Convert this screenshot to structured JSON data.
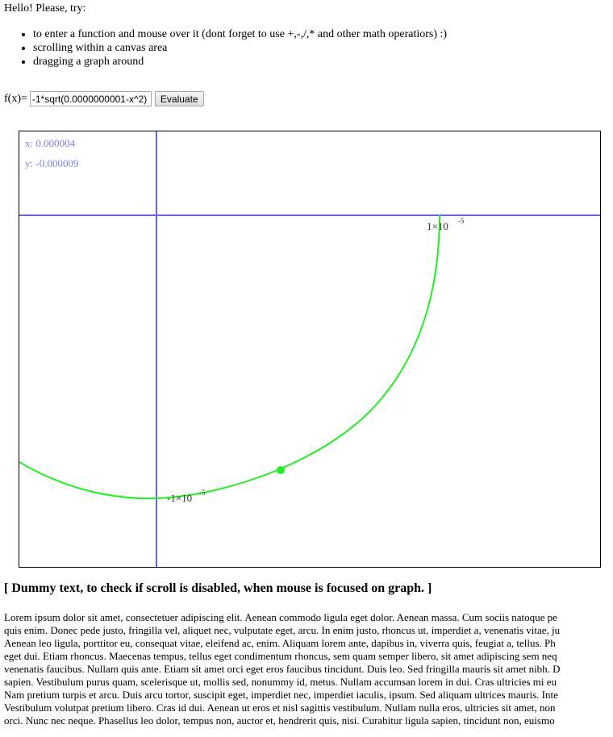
{
  "intro": "Hello! Please, try:",
  "tips": [
    "to enter a function and mouse over it (dont forget to use +,-,/,* and other math operatiors) :)",
    "scrolling within a canvas area",
    "dragging a graph around"
  ],
  "fx": {
    "label": "f(x)=",
    "value": "-1*sqrt(0.0000000001-x^2)",
    "button": "Evaluate"
  },
  "graph": {
    "coord_x": "x: 0.000004",
    "coord_y": "y: -0.000009",
    "tick_x_base": "1×10",
    "tick_x_exp": "-5",
    "tick_y_base": "-1×10",
    "tick_y_exp": "-5",
    "axis_color": "#6666dd",
    "curve_color": "#22ee22"
  },
  "dummy": {
    "heading": "[ Dummy text, to check if scroll is disabled, when mouse is focused on graph. ]",
    "lines": [
      "Lorem ipsum dolor sit amet, consectetuer adipiscing elit. Aenean commodo ligula eget dolor. Aenean massa. Cum sociis natoque pe",
      "quis enim. Donec pede justo, fringilla vel, aliquet nec, vulputate eget, arcu. In enim justo, rhoncus ut, imperdiet a, venenatis vitae, ju",
      "Aenean leo ligula, porttitor eu, consequat vitae, eleifend ac, enim. Aliquam lorem ante, dapibus in, viverra quis, feugiat a, tellus. Ph",
      "eget dui. Etiam rhoncus. Maecenas tempus, tellus eget condimentum rhoncus, sem quam semper libero, sit amet adipiscing sem neq",
      "venenatis faucibus. Nullam quis ante. Etiam sit amet orci eget eros faucibus tincidunt. Duis leo. Sed fringilla mauris sit amet nibh. D",
      "sapien. Vestibulum purus quam, scelerisque ut, mollis sed, nonummy id, metus. Nullam accumsan lorem in dui. Cras ultricies mi eu",
      "Nam pretium turpis et arcu. Duis arcu tortor, suscipit eget, imperdiet nec, imperdiet iaculis, ipsum. Sed aliquam ultrices mauris. Inte",
      "Vestibulum volutpat pretium libero. Cras id dui. Aenean ut eros et nisl sagittis vestibulum. Nullam nulla eros, ultricies sit amet, non",
      "orci. Nunc nec neque. Phasellus leo dolor, tempus non, auctor et, hendrerit quis, nisi. Curabitur ligula sapien, tincidunt non, euismo"
    ]
  }
}
